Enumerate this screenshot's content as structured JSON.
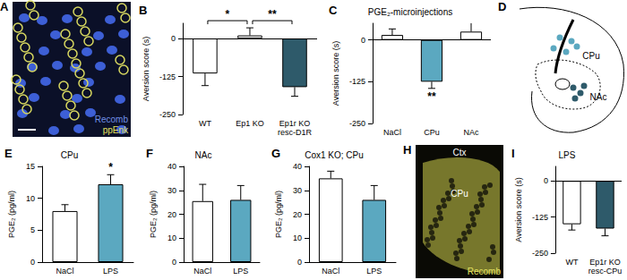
{
  "chart_data": [
    {
      "title": "B",
      "type": "bar",
      "ylabel": "Aversion score (s)",
      "categories": [
        "WT",
        "Ep1 KO",
        "Ep1r KO\nresc-D1R"
      ],
      "values": [
        -115,
        10,
        -160
      ],
      "errors": [
        40,
        25,
        30
      ],
      "colors": [
        "#ffffff",
        "#ffffff",
        "#2e5a6a"
      ],
      "ylim": [
        -250,
        50
      ],
      "yticks": [
        -250,
        -125,
        0
      ],
      "annotations": [
        {
          "text": "*",
          "from": "WT",
          "to": "Ep1 KO"
        },
        {
          "text": "**",
          "from": "Ep1 KO",
          "to": "Ep1r KO\nresc-D1R"
        }
      ]
    },
    {
      "title": "C",
      "subtitle": "PGE₂-microinjections",
      "type": "bar",
      "ylabel": "Aversion score (s)",
      "categories": [
        "NaCl",
        "CPu",
        "NAc"
      ],
      "values": [
        15,
        -125,
        25
      ],
      "errors": [
        18,
        20,
        30
      ],
      "colors": [
        "#ffffff",
        "#5ba8c0",
        "#ffffff"
      ],
      "ylim": [
        -250,
        50
      ],
      "yticks": [
        -250,
        -125,
        0
      ],
      "annotations": [
        {
          "text": "**",
          "at": "CPu"
        }
      ]
    },
    {
      "title": "E",
      "subtitle": "CPu",
      "type": "bar",
      "ylabel": "PGE₂ (pg/ml)",
      "categories": [
        "NaCl",
        "LPS"
      ],
      "values": [
        8,
        12.2
      ],
      "errors": [
        1,
        1.5
      ],
      "colors": [
        "#ffffff",
        "#5ba8c0"
      ],
      "ylim": [
        0,
        15
      ],
      "yticks": [
        0,
        5,
        10,
        15
      ],
      "annotations": [
        {
          "text": "*",
          "at": "LPS"
        }
      ]
    },
    {
      "title": "F",
      "subtitle": "NAc",
      "type": "bar",
      "ylabel": "PGE₂ (pg/ml)",
      "categories": [
        "NaCl",
        "LPS"
      ],
      "values": [
        25.5,
        26
      ],
      "errors": [
        7,
        6
      ],
      "colors": [
        "#ffffff",
        "#5ba8c0"
      ],
      "ylim": [
        0,
        40
      ],
      "yticks": [
        0,
        10,
        20,
        30,
        40
      ]
    },
    {
      "title": "G",
      "subtitle": "Cox1 KO; CPu",
      "type": "bar",
      "ylabel": "PGE₂ (pg/ml)",
      "categories": [
        "NaCl",
        "LPS"
      ],
      "values": [
        35,
        26
      ],
      "errors": [
        3,
        6
      ],
      "colors": [
        "#ffffff",
        "#5ba8c0"
      ],
      "ylim": [
        0,
        40
      ],
      "yticks": [
        0,
        10,
        20,
        30,
        40
      ]
    },
    {
      "title": "I",
      "subtitle": "LPS",
      "type": "bar",
      "ylabel": "Aversion score (s)",
      "categories": [
        "WT",
        "Ep1r KO\nresc-CPu"
      ],
      "values": [
        -150,
        -165
      ],
      "errors": [
        20,
        25
      ],
      "colors": [
        "#ffffff",
        "#2e5a6a"
      ],
      "ylim": [
        -250,
        50
      ],
      "yticks": [
        -250,
        -125,
        0
      ]
    }
  ],
  "images": [
    {
      "title": "A",
      "kind": "micrograph",
      "labels": [
        {
          "text": "Recomb",
          "color": "#6f8fe6"
        },
        {
          "text": "ppEnk",
          "color": "#e2e060"
        }
      ]
    },
    {
      "title": "D",
      "kind": "diagram",
      "labels": [
        {
          "text": "CPu",
          "color": "#000000"
        },
        {
          "text": "NAc",
          "color": "#000000"
        }
      ]
    },
    {
      "title": "H",
      "kind": "section",
      "labels": [
        {
          "text": "Ctx",
          "color": "#ffffff"
        },
        {
          "text": "CPu",
          "color": "#ffffff"
        },
        {
          "text": "Recomb",
          "color": "#e2e060"
        }
      ]
    }
  ]
}
